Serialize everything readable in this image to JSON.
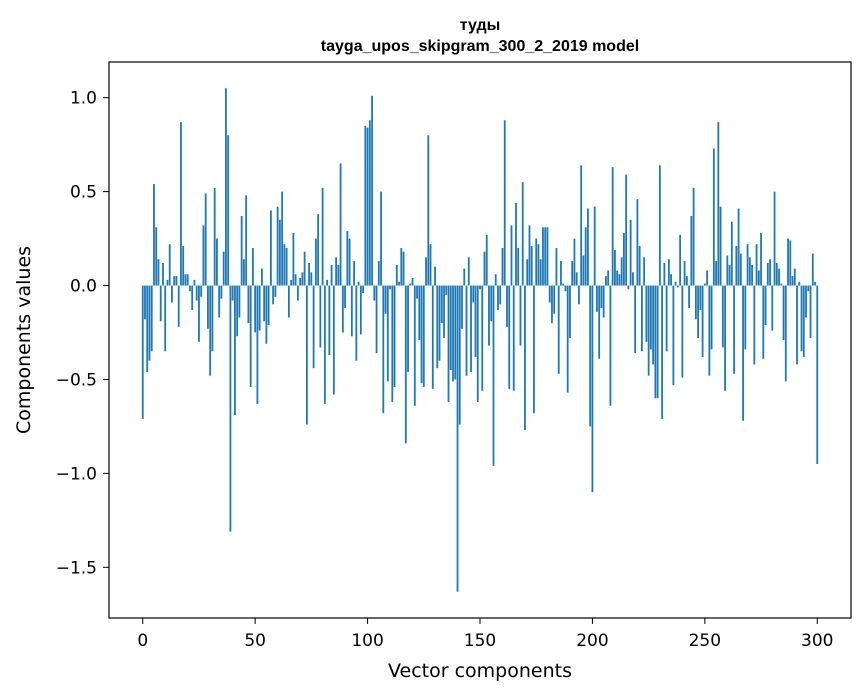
{
  "chart_data": {
    "type": "bar",
    "title": "туды",
    "subtitle": "tayga_upos_skipgram_300_2_2019 model",
    "xlabel": "Vector components",
    "ylabel": "Components values",
    "xlim": [
      -15,
      315
    ],
    "ylim": [
      -1.77,
      1.19
    ],
    "x_ticks": [
      0,
      50,
      100,
      150,
      200,
      250,
      300
    ],
    "x_tick_labels": [
      "0",
      "50",
      "100",
      "150",
      "200",
      "250",
      "300"
    ],
    "y_ticks": [
      1.0,
      0.5,
      0.0,
      -0.5,
      -1.0,
      -1.5
    ],
    "y_tick_labels": [
      "1.0",
      "0.5",
      "0.0",
      "−0.5",
      "−1.0",
      "−1.5"
    ],
    "grid": false,
    "bar_color": "#1f77b4",
    "values": [
      -0.71,
      -0.18,
      -0.46,
      -0.4,
      -0.35,
      0.54,
      0.31,
      0.14,
      -0.19,
      0.12,
      -0.35,
      0.03,
      0.22,
      -0.09,
      0.05,
      0.05,
      -0.22,
      0.87,
      0.21,
      0.06,
      0.06,
      -0.03,
      -0.13,
      0.03,
      -0.08,
      -0.3,
      -0.06,
      0.32,
      0.49,
      -0.23,
      -0.48,
      -0.35,
      0.52,
      0.25,
      -0.17,
      -0.07,
      0.18,
      1.05,
      0.8,
      -1.31,
      -0.08,
      -0.69,
      -0.27,
      -0.17,
      0.37,
      0.14,
      0.48,
      -0.2,
      -0.54,
      0.2,
      -0.25,
      -0.63,
      -0.24,
      0.09,
      -0.19,
      -0.31,
      -0.21,
      0.4,
      -0.1,
      -0.06,
      0.42,
      0.35,
      0.5,
      0.22,
      0.2,
      -0.17,
      0.03,
      0.28,
      0.06,
      -0.08,
      0.04,
      0.07,
      0.18,
      -0.74,
      0.12,
      0.07,
      -0.44,
      0.25,
      0.38,
      -0.33,
      0.52,
      -0.63,
      0.03,
      -0.37,
      0.11,
      -0.58,
      0.15,
      0.11,
      0.65,
      -0.25,
      -0.12,
      0.29,
      0.25,
      -0.27,
      0.13,
      -0.4,
      0.02,
      -0.26,
      -0.04,
      0.85,
      0.84,
      0.88,
      1.01,
      -0.08,
      -0.36,
      0.13,
      0.5,
      -0.68,
      -0.15,
      -0.51,
      -0.02,
      -0.62,
      -0.54,
      0.11,
      0.02,
      0.2,
      0.18,
      -0.84,
      -0.46,
      0.01,
      0.04,
      -0.64,
      -0.07,
      -0.29,
      -0.52,
      -0.54,
      0.15,
      0.8,
      0.22,
      -0.55,
      0.1,
      -0.44,
      -0.4,
      -0.2,
      -0.28,
      -0.05,
      -0.62,
      -0.45,
      -0.51,
      -0.5,
      -1.63,
      -0.74,
      -0.23,
      0.09,
      -0.48,
      0.15,
      -0.46,
      -0.09,
      -0.38,
      -0.62,
      -0.02,
      -0.56,
      0.18,
      0.27,
      -0.32,
      -0.19,
      -0.96,
      0.06,
      -0.13,
      -0.1,
      0.2,
      0.88,
      -0.22,
      -0.55,
      0.32,
      -0.56,
      0.44,
      0.2,
      -0.32,
      0.55,
      -0.77,
      0.14,
      0.32,
      0.21,
      -0.68,
      0.25,
      0.22,
      0.14,
      0.31,
      0.31,
      0.31,
      -0.09,
      -0.2,
      -0.15,
      0.2,
      -0.47,
      0.13,
      0.01,
      -0.03,
      -0.57,
      -0.28,
      0.13,
      0.25,
      0.07,
      -0.1,
      0.64,
      0.16,
      0.31,
      0.41,
      -0.75,
      -1.1,
      0.42,
      -0.14,
      -0.39,
      -0.12,
      -0.17,
      0.05,
      0.08,
      -0.64,
      0.63,
      0.19,
      0.08,
      0.06,
      0.15,
      0.28,
      0.59,
      -0.02,
      0.35,
      0.07,
      -0.36,
      0.46,
      0.21,
      -0.35,
      0.15,
      -0.3,
      -0.48,
      -0.34,
      -0.42,
      -0.6,
      -0.6,
      0.64,
      -0.71,
      0.12,
      -0.35,
      0.14,
      0.06,
      -0.53,
      0.02,
      -0.01,
      0.27,
      -0.49,
      0.13,
      0.05,
      -0.12,
      0.37,
      0.52,
      -0.18,
      -0.28,
      -0.13,
      -0.38,
      0.01,
      0.08,
      -0.48,
      -0.34,
      0.73,
      0.13,
      0.87,
      0.42,
      -0.33,
      -0.56,
      0.16,
      0.11,
      0.34,
      -0.47,
      0.21,
      0.41,
      0.17,
      -0.72,
      -0.34,
      0.22,
      0.15,
      0.11,
      -0.42,
      0.22,
      0.08,
      0.28,
      -0.39,
      -0.21,
      0.12,
      0.14,
      -0.24,
      0.5,
      0.12,
      0.09,
      0.01,
      -0.29,
      -0.51,
      0.25,
      0.24,
      0.05,
      0.09,
      -0.42,
      0.02,
      -0.35,
      -0.38,
      -0.17,
      -0.03,
      -0.28,
      0.17,
      0.02,
      -0.95
    ]
  }
}
